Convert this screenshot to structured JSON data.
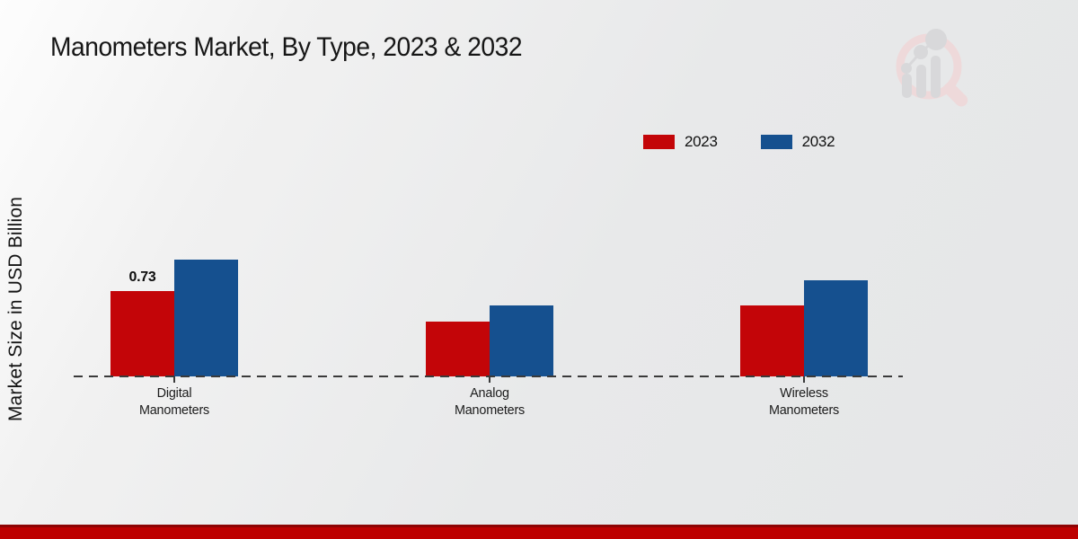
{
  "title": "Manometers Market, By Type, 2023 & 2032",
  "y_axis_label": "Market Size in USD Billion",
  "legend": {
    "items": [
      {
        "label": "2023",
        "color": "#c30508"
      },
      {
        "label": "2032",
        "color": "#15508f"
      }
    ]
  },
  "watermark_icon": "market-research-future-logo",
  "footer_bar_color": "#bd0000",
  "chart_data": {
    "type": "bar",
    "categories": [
      "Digital Manometers",
      "Analog Manometers",
      "Wireless Manometers"
    ],
    "series": [
      {
        "name": "2023",
        "color": "#c30508",
        "values": [
          0.73,
          0.47,
          0.61
        ],
        "data_labels": [
          "0.73",
          "",
          ""
        ]
      },
      {
        "name": "2032",
        "color": "#15508f",
        "values": [
          1.0,
          0.61,
          0.82
        ],
        "data_labels": [
          "",
          "",
          ""
        ]
      }
    ],
    "title": "Manometers Market, By Type, 2023 & 2032",
    "xlabel": "",
    "ylabel": "Market Size in USD Billion",
    "ylim": [
      0,
      1.1
    ],
    "grid": false,
    "legend_position": "top-right",
    "baseline_style": "dashed",
    "data_labels_shown": "only 2023 Digital Manometers bar (0.73)"
  }
}
